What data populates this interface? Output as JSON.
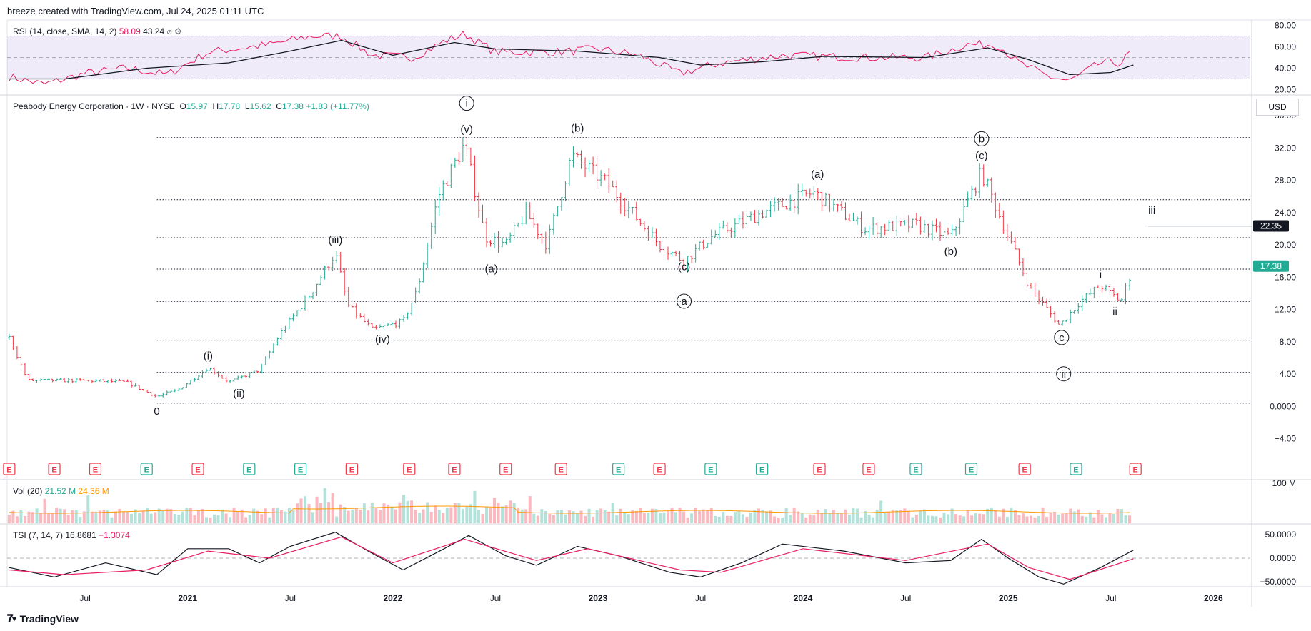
{
  "header": {
    "text": "breeze created with TradingView.com, Jul 24, 2025 01:11 UTC"
  },
  "footer": {
    "brand": "TradingView",
    "logo": "tradingview-logo-icon"
  },
  "colors": {
    "up": "#22ab94",
    "down": "#f23645",
    "rsi": "#e91e63",
    "tsi_signal": "#e91e63",
    "rsi_band": "#7e57c2",
    "vol_ma": "#ff9800"
  },
  "rsi_panel": {
    "legend_name": "RSI (14, close, SMA, 14, 2)",
    "value1": "58.09",
    "value2": "43.24",
    "ticks": [
      "80.00",
      "60.00",
      "40.00",
      "20.00"
    ]
  },
  "price_panel": {
    "legend_name": "Peabody Energy Corporation · 1W · NYSE",
    "o_label": "O",
    "o_value": "15.97",
    "h_label": "H",
    "h_value": "17.78",
    "l_label": "L",
    "l_value": "15.62",
    "c_label": "C",
    "c_value": "17.38",
    "change": "+1.83 (+11.77%)",
    "currency": "USD",
    "ticks": [
      "36.00",
      "32.00",
      "28.00",
      "24.00",
      "20.00",
      "16.00",
      "12.00",
      "8.00",
      "4.00",
      "0.0000",
      "−4.00"
    ],
    "last_price_label": "17.38",
    "level_label": "22.35"
  },
  "vol_panel": {
    "legend_name": "Vol (20)",
    "value1": "21.52 M",
    "value2": "24.36 M",
    "tick": "100 M"
  },
  "tsi_panel": {
    "legend_name": "TSI (7, 14, 7)",
    "value1": "16.8681",
    "value2": "−1.3074",
    "ticks": [
      "50.0000",
      "0.0000",
      "−50.0000"
    ]
  },
  "time_axis": {
    "labels": [
      "Jul",
      "2021",
      "Jul",
      "2022",
      "Jul",
      "2023",
      "Jul",
      "2024",
      "Jul",
      "2025",
      "Jul",
      "2026"
    ]
  },
  "earnings_marker": "E",
  "chart_data": {
    "type": "candlestick",
    "title": "Peabody Energy Corporation · 1W · NYSE",
    "ylim": [
      -4,
      38
    ],
    "grid": true,
    "horizontal_levels": [
      33.3,
      25.6,
      20.9,
      17.0,
      13.0,
      8.2,
      4.2,
      0.4
    ],
    "price_path": [
      [
        2020.13,
        8.5
      ],
      [
        2020.22,
        3.2
      ],
      [
        2020.5,
        3.2
      ],
      [
        2020.7,
        3.0
      ],
      [
        2020.85,
        1.2
      ],
      [
        2020.95,
        2.0
      ],
      [
        2021.1,
        4.8
      ],
      [
        2021.2,
        3.0
      ],
      [
        2021.35,
        4.5
      ],
      [
        2021.45,
        9.0
      ],
      [
        2021.6,
        14.0
      ],
      [
        2021.72,
        19.0
      ],
      [
        2021.78,
        12.5
      ],
      [
        2021.9,
        9.5
      ],
      [
        2022.05,
        10.5
      ],
      [
        2022.12,
        14.5
      ],
      [
        2022.22,
        26.0
      ],
      [
        2022.35,
        32.5
      ],
      [
        2022.45,
        21.0
      ],
      [
        2022.55,
        20.0
      ],
      [
        2022.65,
        24.0
      ],
      [
        2022.75,
        20.0
      ],
      [
        2022.87,
        31.0
      ],
      [
        2023.05,
        27.5
      ],
      [
        2023.3,
        20.0
      ],
      [
        2023.42,
        18.0
      ],
      [
        2023.55,
        21.0
      ],
      [
        2023.8,
        24.0
      ],
      [
        2024.05,
        26.5
      ],
      [
        2024.3,
        22.0
      ],
      [
        2024.55,
        22.5
      ],
      [
        2024.72,
        21.0
      ],
      [
        2024.87,
        29.0
      ],
      [
        2025.0,
        21.0
      ],
      [
        2025.1,
        15.0
      ],
      [
        2025.25,
        10.0
      ],
      [
        2025.35,
        13.0
      ],
      [
        2025.45,
        15.0
      ],
      [
        2025.55,
        13.0
      ],
      [
        2025.61,
        17.4
      ]
    ],
    "wave_labels": [
      {
        "t": 2020.85,
        "p": 0.4,
        "text": "0",
        "circled": false,
        "pos": "below"
      },
      {
        "t": 2021.1,
        "p": 5.1,
        "text": "(i)",
        "circled": false,
        "pos": "above"
      },
      {
        "t": 2021.25,
        "p": 2.6,
        "text": "(ii)",
        "circled": false,
        "pos": "below"
      },
      {
        "t": 2021.72,
        "p": 19.5,
        "text": "(iii)",
        "circled": false,
        "pos": "above"
      },
      {
        "t": 2021.95,
        "p": 9.3,
        "text": "(iv)",
        "circled": false,
        "pos": "below"
      },
      {
        "t": 2022.36,
        "p": 33.2,
        "text": "(v)",
        "circled": false,
        "pos": "above"
      },
      {
        "t": 2022.36,
        "p": 36.4,
        "text": "i",
        "circled": true,
        "pos": "above"
      },
      {
        "t": 2022.48,
        "p": 18.0,
        "text": "(a)",
        "circled": false,
        "pos": "below"
      },
      {
        "t": 2022.9,
        "p": 33.3,
        "text": "(b)",
        "circled": false,
        "pos": "above"
      },
      {
        "t": 2023.42,
        "p": 18.3,
        "text": "(c)",
        "circled": false,
        "pos": "below"
      },
      {
        "t": 2023.42,
        "p": 14.0,
        "text": "a",
        "circled": true,
        "pos": "below"
      },
      {
        "t": 2024.07,
        "p": 27.6,
        "text": "(a)",
        "circled": false,
        "pos": "above"
      },
      {
        "t": 2024.72,
        "p": 20.2,
        "text": "(b)",
        "circled": false,
        "pos": "below"
      },
      {
        "t": 2024.87,
        "p": 29.9,
        "text": "(c)",
        "circled": false,
        "pos": "above"
      },
      {
        "t": 2024.87,
        "p": 32.0,
        "text": "b",
        "circled": true,
        "pos": "above"
      },
      {
        "t": 2025.26,
        "p": 9.5,
        "text": "c",
        "circled": true,
        "pos": "below"
      },
      {
        "t": 2025.27,
        "p": 5.0,
        "text": "ii",
        "circled": true,
        "pos": "below"
      },
      {
        "t": 2025.45,
        "p": 15.2,
        "text": "i",
        "circled": false,
        "pos": "above"
      },
      {
        "t": 2025.52,
        "p": 12.7,
        "text": "ii",
        "circled": false,
        "pos": "below"
      },
      {
        "t": 2025.7,
        "p": 23.1,
        "text": "iii",
        "circled": false,
        "pos": "above"
      }
    ],
    "iii_target": {
      "t_start": 2025.68,
      "price": 22.35
    },
    "rsi_path": [
      [
        2020.13,
        32
      ],
      [
        2020.3,
        25
      ],
      [
        2020.5,
        35
      ],
      [
        2020.7,
        40
      ],
      [
        2020.9,
        34
      ],
      [
        2021.1,
        55
      ],
      [
        2021.4,
        62
      ],
      [
        2021.6,
        70
      ],
      [
        2021.75,
        70
      ],
      [
        2021.9,
        52
      ],
      [
        2022.1,
        50
      ],
      [
        2022.25,
        65
      ],
      [
        2022.35,
        72
      ],
      [
        2022.5,
        55
      ],
      [
        2022.8,
        55
      ],
      [
        2023.0,
        58
      ],
      [
        2023.2,
        52
      ],
      [
        2023.4,
        35
      ],
      [
        2023.6,
        45
      ],
      [
        2023.9,
        52
      ],
      [
        2024.3,
        50
      ],
      [
        2024.6,
        50
      ],
      [
        2024.8,
        62
      ],
      [
        2024.95,
        62
      ],
      [
        2025.05,
        45
      ],
      [
        2025.2,
        32
      ],
      [
        2025.3,
        28
      ],
      [
        2025.45,
        45
      ],
      [
        2025.55,
        45
      ],
      [
        2025.61,
        58
      ]
    ],
    "rsi_ma_path": [
      [
        2020.13,
        30
      ],
      [
        2020.4,
        30
      ],
      [
        2020.8,
        40
      ],
      [
        2021.2,
        45
      ],
      [
        2021.5,
        56
      ],
      [
        2021.75,
        66
      ],
      [
        2022.0,
        52
      ],
      [
        2022.3,
        64
      ],
      [
        2022.5,
        58
      ],
      [
        2022.9,
        56
      ],
      [
        2023.3,
        50
      ],
      [
        2023.5,
        43
      ],
      [
        2023.8,
        46
      ],
      [
        2024.1,
        51
      ],
      [
        2024.6,
        50
      ],
      [
        2024.9,
        59
      ],
      [
        2025.1,
        48
      ],
      [
        2025.3,
        34
      ],
      [
        2025.5,
        36
      ],
      [
        2025.61,
        43
      ]
    ],
    "tsi_path": [
      [
        2020.13,
        -20
      ],
      [
        2020.35,
        -40
      ],
      [
        2020.6,
        -10
      ],
      [
        2020.85,
        -35
      ],
      [
        2021.0,
        20
      ],
      [
        2021.2,
        20
      ],
      [
        2021.35,
        -10
      ],
      [
        2021.5,
        25
      ],
      [
        2021.72,
        55
      ],
      [
        2021.9,
        10
      ],
      [
        2022.05,
        -25
      ],
      [
        2022.25,
        20
      ],
      [
        2022.37,
        48
      ],
      [
        2022.55,
        5
      ],
      [
        2022.7,
        -15
      ],
      [
        2022.9,
        25
      ],
      [
        2023.1,
        5
      ],
      [
        2023.35,
        -30
      ],
      [
        2023.5,
        -40
      ],
      [
        2023.7,
        -10
      ],
      [
        2023.9,
        30
      ],
      [
        2024.2,
        15
      ],
      [
        2024.5,
        -10
      ],
      [
        2024.72,
        -5
      ],
      [
        2024.87,
        40
      ],
      [
        2025.0,
        0
      ],
      [
        2025.15,
        -40
      ],
      [
        2025.27,
        -55
      ],
      [
        2025.45,
        -20
      ],
      [
        2025.61,
        17
      ]
    ],
    "tsi_signal_path": [
      [
        2020.13,
        -25
      ],
      [
        2020.4,
        -35
      ],
      [
        2020.8,
        -25
      ],
      [
        2021.1,
        15
      ],
      [
        2021.4,
        0
      ],
      [
        2021.75,
        45
      ],
      [
        2022.0,
        -10
      ],
      [
        2022.35,
        40
      ],
      [
        2022.7,
        -5
      ],
      [
        2022.95,
        20
      ],
      [
        2023.4,
        -25
      ],
      [
        2023.6,
        -30
      ],
      [
        2024.0,
        20
      ],
      [
        2024.5,
        -5
      ],
      [
        2024.9,
        30
      ],
      [
        2025.1,
        -20
      ],
      [
        2025.3,
        -45
      ],
      [
        2025.61,
        -1.3
      ]
    ]
  }
}
